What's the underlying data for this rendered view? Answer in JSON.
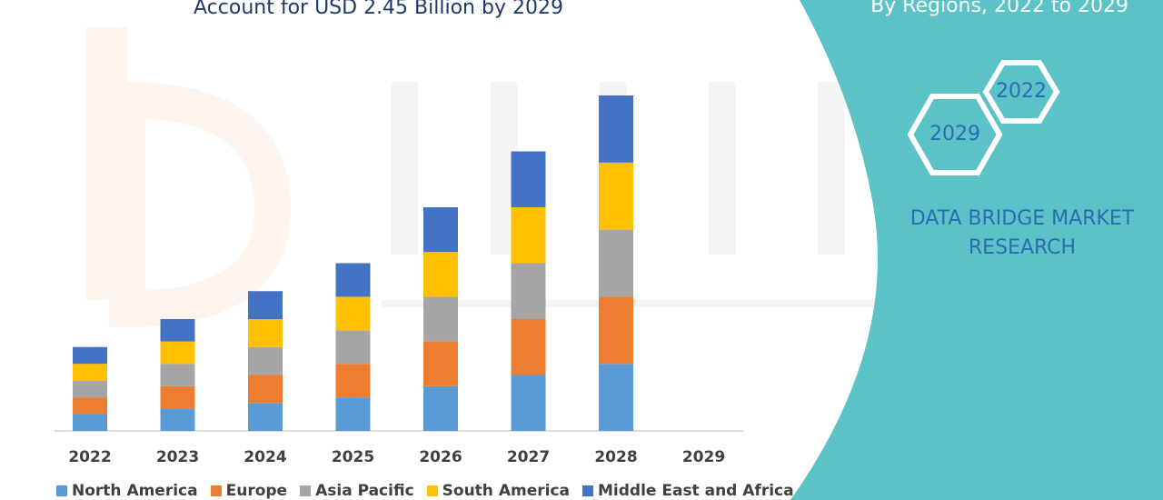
{
  "header": {
    "title": "Account for USD 2.45 Billion by 2029",
    "subtitle": "By Regions, 2022 to 2029"
  },
  "badges": {
    "hex_a": "2022",
    "hex_b": "2029"
  },
  "brand": {
    "line1": "DATA BRIDGE MARKET",
    "line2": "RESEARCH"
  },
  "colors": {
    "teal_panel": "#5bc2c8",
    "north_america": "#5b9bd5",
    "europe": "#ed7d31",
    "asia_pacific": "#a5a5a5",
    "south_america": "#ffc000",
    "middle_east_africa": "#4472c4"
  },
  "chart_data": {
    "type": "bar",
    "stacked": true,
    "categories": [
      "2022",
      "2023",
      "2024",
      "2025",
      "2026",
      "2027",
      "2028",
      "2029"
    ],
    "ylim": [
      0,
      6
    ],
    "grid": false,
    "legend_position": "bottom",
    "series": [
      {
        "name": "North America",
        "color": "#5b9bd5",
        "values": [
          0.3,
          0.4,
          0.5,
          0.6,
          0.8,
          1.0,
          1.2,
          0
        ]
      },
      {
        "name": "Europe",
        "color": "#ed7d31",
        "values": [
          0.3,
          0.4,
          0.5,
          0.6,
          0.8,
          1.0,
          1.2,
          0
        ]
      },
      {
        "name": "Asia Pacific",
        "color": "#a5a5a5",
        "values": [
          0.3,
          0.4,
          0.5,
          0.6,
          0.8,
          1.0,
          1.2,
          0
        ]
      },
      {
        "name": "South America",
        "color": "#ffc000",
        "values": [
          0.3,
          0.4,
          0.5,
          0.6,
          0.8,
          1.0,
          1.2,
          0
        ]
      },
      {
        "name": "Middle East and Africa",
        "color": "#4472c4",
        "values": [
          0.3,
          0.4,
          0.5,
          0.6,
          0.8,
          1.0,
          1.2,
          0
        ]
      }
    ]
  }
}
